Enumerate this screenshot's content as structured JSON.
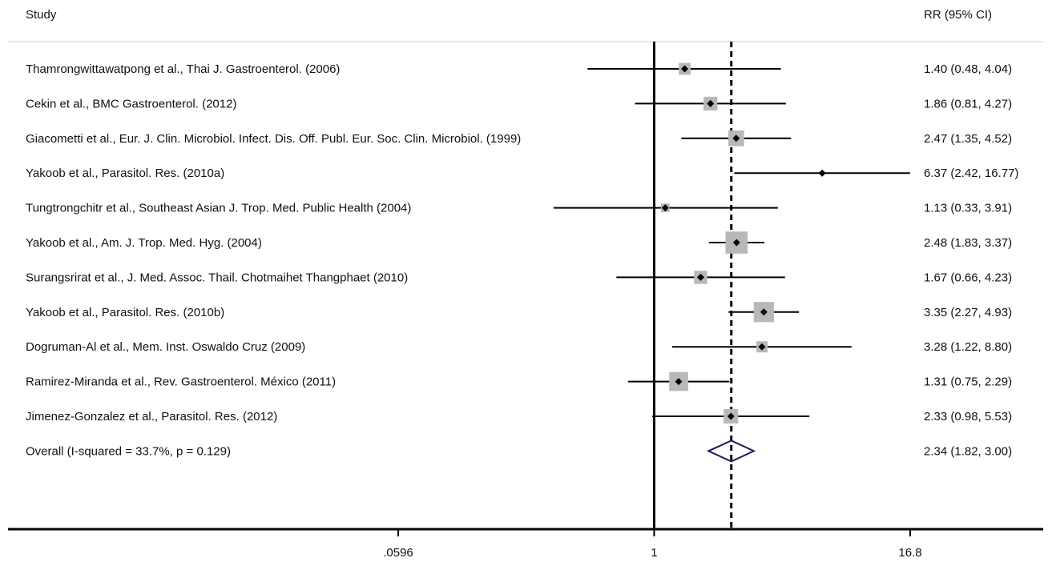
{
  "chart_data": {
    "type": "forest",
    "header": {
      "study_label": "Study",
      "effect_label": "RR (95% CI)"
    },
    "xscale": "log",
    "xlim": [
      0.0596,
      16.8
    ],
    "xticks": [
      {
        "value": 0.0596,
        "label": ".0596"
      },
      {
        "value": 1,
        "label": "1"
      },
      {
        "value": 16.8,
        "label": "16.8"
      }
    ],
    "null_line": 1,
    "overall_line": 2.34,
    "studies": [
      {
        "label": "Thamrongwittawatpong et al., Thai J. Gastroenterol. (2006)",
        "rr": 1.4,
        "lo": 0.48,
        "hi": 4.04,
        "text": "1.40 (0.48, 4.04)",
        "weight": 0.55
      },
      {
        "label": "Cekin et al., BMC Gastroenterol. (2012)",
        "rr": 1.86,
        "lo": 0.81,
        "hi": 4.27,
        "text": "1.86 (0.81, 4.27)",
        "weight": 0.7
      },
      {
        "label": "Giacometti et al., Eur. J. Clin. Microbiol. Infect. Dis. Off. Publ. Eur. Soc. Clin. Microbiol. (1999)",
        "rr": 2.47,
        "lo": 1.35,
        "hi": 4.52,
        "text": "2.47 (1.35, 4.52)",
        "weight": 0.85
      },
      {
        "label": "Yakoob et al., Parasitol. Res. (2010a)",
        "rr": 6.37,
        "lo": 2.42,
        "hi": 16.77,
        "text": "6.37 (2.42, 16.77)",
        "weight": 0.0
      },
      {
        "label": "Tungtrongchitr et al., Southeast Asian J. Trop. Med. Public Health (2004)",
        "rr": 1.13,
        "lo": 0.33,
        "hi": 3.91,
        "text": "1.13 (0.33, 3.91)",
        "weight": 0.3
      },
      {
        "label": "Yakoob et al., Am. J. Trop. Med. Hyg. (2004)",
        "rr": 2.48,
        "lo": 1.83,
        "hi": 3.37,
        "text": "2.48 (1.83, 3.37)",
        "weight": 1.35
      },
      {
        "label": "Surangsrirat et al., J. Med. Assoc. Thail. Chotmaihet Thangphaet (2010)",
        "rr": 1.67,
        "lo": 0.66,
        "hi": 4.23,
        "text": "1.67 (0.66, 4.23)",
        "weight": 0.65
      },
      {
        "label": "Yakoob et al., Parasitol. Res. (2010b)",
        "rr": 3.35,
        "lo": 2.27,
        "hi": 4.93,
        "text": "3.35 (2.27, 4.93)",
        "weight": 1.2
      },
      {
        "label": "Dogruman-Al et al., Mem. Inst. Oswaldo Cruz (2009)",
        "rr": 3.28,
        "lo": 1.22,
        "hi": 8.8,
        "text": "3.28 (1.22, 8.80)",
        "weight": 0.5
      },
      {
        "label": "Ramirez-Miranda et al., Rev. Gastroenterol. México (2011)",
        "rr": 1.31,
        "lo": 0.75,
        "hi": 2.29,
        "text": "1.31 (0.75, 2.29)",
        "weight": 1.1
      },
      {
        "label": "Jimenez-Gonzalez et al., Parasitol. Res. (2012)",
        "rr": 2.33,
        "lo": 0.98,
        "hi": 5.53,
        "text": "2.33 (0.98, 5.53)",
        "weight": 0.75
      }
    ],
    "overall": {
      "label": "Overall  (I-squared = 33.7%, p = 0.129)",
      "rr": 2.34,
      "lo": 1.82,
      "hi": 3.0,
      "text": "2.34 (1.82, 3.00)"
    },
    "colors": {
      "line": "#000000",
      "box": "#b8b8b8",
      "diamond": "#1a1a5c",
      "divider": "#cccccc"
    }
  }
}
